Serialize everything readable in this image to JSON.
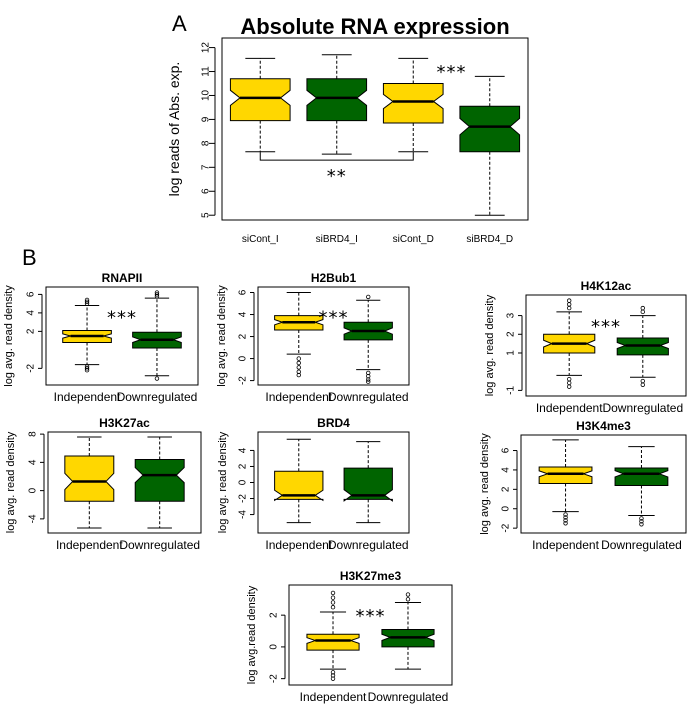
{
  "colors": {
    "independent": "#FFD700",
    "downregulated": "#006400"
  },
  "panel_a": {
    "letter": "A",
    "chart_data": {
      "type": "box",
      "title": "Absolute RNA expression",
      "ylabel": "log reads of Abs. exp.",
      "ylim": [
        4.8,
        12.4
      ],
      "yticks": [
        5,
        6,
        7,
        8,
        9,
        10,
        11,
        12
      ],
      "categories": [
        "siCont_I",
        "siBRD4_I",
        "siCont_D",
        "siBRD4_D"
      ],
      "box_colors": [
        "#FFD700",
        "#006400",
        "#FFD700",
        "#006400"
      ],
      "boxes": [
        {
          "whisker_low": 7.65,
          "q1": 8.95,
          "median": 9.9,
          "q3": 10.7,
          "whisker_high": 11.55
        },
        {
          "whisker_low": 7.55,
          "q1": 8.95,
          "median": 9.9,
          "q3": 10.7,
          "whisker_high": 11.7
        },
        {
          "whisker_low": 7.65,
          "q1": 8.85,
          "median": 9.75,
          "q3": 10.5,
          "whisker_high": 11.55
        },
        {
          "whisker_low": 5.0,
          "q1": 7.65,
          "median": 8.7,
          "q3": 9.55,
          "whisker_high": 10.8
        }
      ],
      "annotations": [
        {
          "text": "***",
          "between": "siCont_D vs siBRD4_D"
        },
        {
          "text": "**",
          "between": "siCont_I vs siCont_D"
        }
      ]
    }
  },
  "panel_b": {
    "letter": "B",
    "chart_data": [
      {
        "type": "box",
        "title": "RNAPII",
        "ylabel": "log avg. read density",
        "ylim": [
          -3.8,
          6.8
        ],
        "yticks": [
          -2,
          2,
          4,
          6
        ],
        "categories": [
          "Independent",
          "Downregulated"
        ],
        "annotation": "***",
        "boxes": [
          {
            "whisker_low": -1.6,
            "q1": 0.8,
            "median": 1.5,
            "q3": 2.1,
            "whisker_high": 4.8,
            "outliers_low": [
              -1.8,
              -2.0,
              -2.2
            ],
            "outliers_high": [
              5.0,
              5.2,
              5.4
            ]
          },
          {
            "whisker_low": -2.8,
            "q1": 0.2,
            "median": 1.1,
            "q3": 1.9,
            "whisker_high": 5.6,
            "outliers_low": [
              -3.1
            ],
            "outliers_high": [
              5.8,
              6.0,
              6.2
            ]
          }
        ]
      },
      {
        "type": "box",
        "title": "H2Bub1",
        "ylabel": "log avg. read density",
        "ylim": [
          -2.4,
          6.5
        ],
        "yticks": [
          -2,
          0,
          2,
          4,
          6
        ],
        "categories": [
          "Independent",
          "Downregulated"
        ],
        "annotation": "***",
        "boxes": [
          {
            "whisker_low": 0.4,
            "q1": 2.6,
            "median": 3.3,
            "q3": 3.9,
            "whisker_high": 6.0,
            "outliers_low": [
              0.0,
              -0.4,
              -0.8,
              -1.2,
              -1.5
            ],
            "outliers_high": []
          },
          {
            "whisker_low": -1.0,
            "q1": 1.7,
            "median": 2.5,
            "q3": 3.3,
            "whisker_high": 5.3,
            "outliers_low": [
              -1.3,
              -1.6,
              -1.9,
              -2.1
            ],
            "outliers_high": [
              5.6
            ]
          }
        ]
      },
      {
        "type": "box",
        "title": "H4K12ac",
        "ylabel": "log avg. read density",
        "ylim": [
          -1.3,
          4.1
        ],
        "yticks": [
          -1,
          1,
          2,
          3
        ],
        "categories": [
          "Independent",
          "Downregulated"
        ],
        "annotation": "***",
        "boxes": [
          {
            "whisker_low": -0.2,
            "q1": 1.0,
            "median": 1.5,
            "q3": 2.0,
            "whisker_high": 3.2,
            "outliers_low": [
              -0.4,
              -0.6,
              -0.8
            ],
            "outliers_high": [
              3.4,
              3.6,
              3.8
            ]
          },
          {
            "whisker_low": -0.3,
            "q1": 0.9,
            "median": 1.4,
            "q3": 1.8,
            "whisker_high": 3.0,
            "outliers_low": [
              -0.5,
              -0.7
            ],
            "outliers_high": [
              3.2,
              3.4
            ]
          }
        ]
      },
      {
        "type": "box",
        "title": "H3K27ac",
        "ylabel": "log avg. read density",
        "ylim": [
          -6.0,
          8.3
        ],
        "yticks": [
          -4,
          0,
          4,
          8
        ],
        "categories": [
          "Independent",
          "Downregulated"
        ],
        "annotation": "",
        "boxes": [
          {
            "whisker_low": -5.3,
            "q1": -1.5,
            "median": 1.3,
            "q3": 4.9,
            "whisker_high": 7.6,
            "outliers_low": [],
            "outliers_high": []
          },
          {
            "whisker_low": -5.3,
            "q1": -1.5,
            "median": 2.2,
            "q3": 4.4,
            "whisker_high": 7.6,
            "outliers_low": [],
            "outliers_high": []
          }
        ]
      },
      {
        "type": "box",
        "title": "BRD4",
        "ylabel": "log avg. read density",
        "ylim": [
          -6.3,
          6.3
        ],
        "yticks": [
          -4,
          -2,
          0,
          2,
          4
        ],
        "categories": [
          "Independent",
          "Downregulated"
        ],
        "annotation": "",
        "boxes": [
          {
            "whisker_low": -5.0,
            "q1": -2.1,
            "median": -1.6,
            "q3": 1.4,
            "whisker_high": 5.4,
            "outliers_low": [],
            "outliers_high": []
          },
          {
            "whisker_low": -5.0,
            "q1": -2.1,
            "median": -1.6,
            "q3": 1.8,
            "whisker_high": 5.1,
            "outliers_low": [],
            "outliers_high": []
          }
        ]
      },
      {
        "type": "box",
        "title": "H3K4me3",
        "ylabel": "log avg. read density",
        "ylim": [
          -2.5,
          7.6
        ],
        "yticks": [
          -2,
          0,
          2,
          4,
          6
        ],
        "categories": [
          "Independent",
          "Downregulated"
        ],
        "annotation": "",
        "boxes": [
          {
            "whisker_low": -0.3,
            "q1": 2.6,
            "median": 3.6,
            "q3": 4.3,
            "whisker_high": 7.1,
            "outliers_low": [
              -0.6,
              -0.9,
              -1.2,
              -1.5
            ],
            "outliers_high": []
          },
          {
            "whisker_low": -0.7,
            "q1": 2.4,
            "median": 3.6,
            "q3": 4.2,
            "whisker_high": 6.4,
            "outliers_low": [
              -1.0,
              -1.3,
              -1.6
            ],
            "outliers_high": []
          }
        ]
      },
      {
        "type": "box",
        "title": "H3K27me3",
        "ylabel": "log avg.read density",
        "ylim": [
          -2.4,
          3.9
        ],
        "yticks": [
          -2,
          0,
          2
        ],
        "categories": [
          "Independent",
          "Downregulated"
        ],
        "annotation": "***",
        "boxes": [
          {
            "whisker_low": -1.4,
            "q1": -0.2,
            "median": 0.4,
            "q3": 0.8,
            "whisker_high": 2.2,
            "outliers_low": [
              -1.6,
              -1.8,
              -2.0
            ],
            "outliers_high": [
              2.5,
              2.8,
              3.1,
              3.4
            ]
          },
          {
            "whisker_low": -1.4,
            "q1": 0.0,
            "median": 0.6,
            "q3": 1.1,
            "whisker_high": 2.8,
            "outliers_low": [],
            "outliers_high": [
              3.0,
              3.3
            ]
          }
        ]
      }
    ]
  }
}
